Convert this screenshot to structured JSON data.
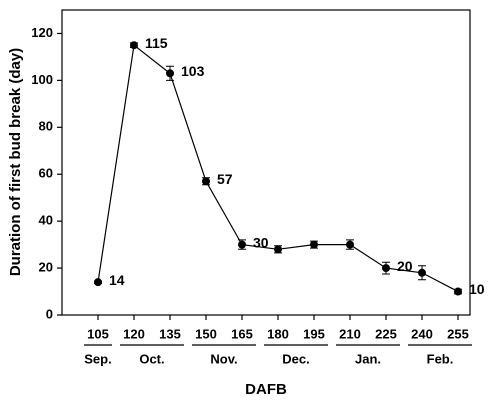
{
  "chart_data": {
    "type": "line",
    "xlabel": "DAFB",
    "ylabel": "Duration of first bud break (day)",
    "x": [
      105,
      120,
      135,
      150,
      165,
      180,
      195,
      210,
      225,
      240,
      255
    ],
    "series": [
      {
        "color": "#000000",
        "values": [
          14,
          115,
          103,
          57,
          30,
          28,
          30,
          30,
          20,
          18,
          10
        ],
        "errors": [
          0.5,
          1,
          3,
          1.5,
          2,
          1.5,
          1.5,
          2,
          2.5,
          3,
          1
        ],
        "value_labels": [
          "14",
          "115",
          "103",
          "57",
          "30",
          null,
          null,
          null,
          "20",
          null,
          "10"
        ]
      }
    ],
    "month_groups": [
      {
        "label": "Sep.",
        "from": 105,
        "to": 105
      },
      {
        "label": "Oct.",
        "from": 120,
        "to": 135
      },
      {
        "label": "Nov.",
        "from": 150,
        "to": 165
      },
      {
        "label": "Dec.",
        "from": 180,
        "to": 195
      },
      {
        "label": "Jan.",
        "from": 210,
        "to": 225
      },
      {
        "label": "Feb.",
        "from": 240,
        "to": 255
      }
    ],
    "xlim": [
      90,
      260
    ],
    "xticks": [
      105,
      120,
      135,
      150,
      165,
      180,
      195,
      210,
      225,
      240,
      255
    ],
    "ylim": [
      0,
      130
    ],
    "yticks": [
      0,
      20,
      40,
      60,
      80,
      100,
      120
    ],
    "grid": false
  }
}
